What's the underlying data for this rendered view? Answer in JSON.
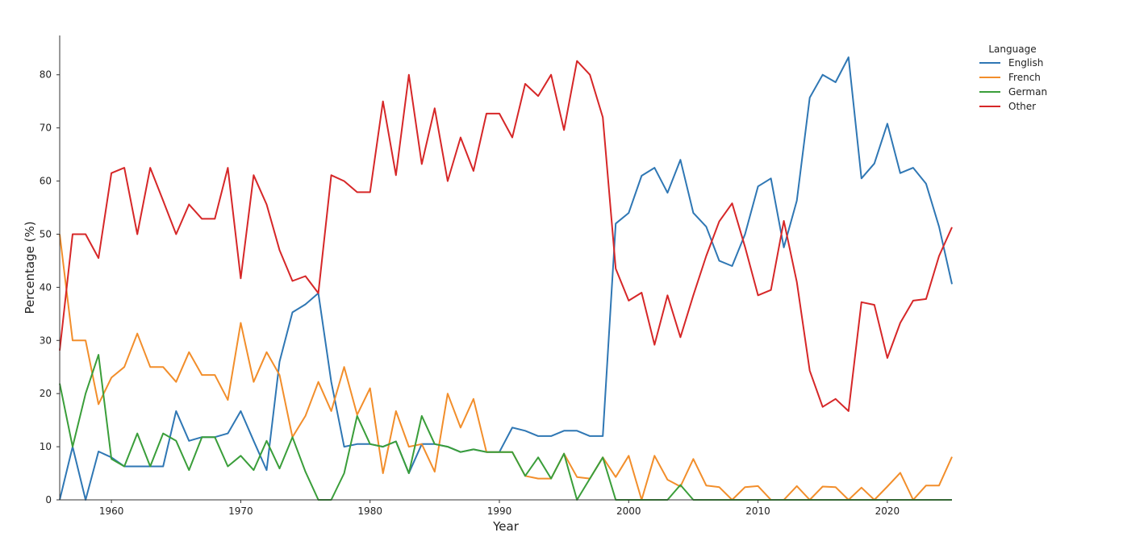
{
  "chart_data": {
    "type": "line",
    "title": "",
    "xlabel": "Year",
    "ylabel": "Percentage (%)",
    "xlim": [
      1956,
      2025
    ],
    "ylim": [
      0,
      85
    ],
    "xticks": [
      1960,
      1970,
      1980,
      1990,
      2000,
      2010,
      2020
    ],
    "yticks": [
      0,
      10,
      20,
      30,
      40,
      50,
      60,
      70,
      80
    ],
    "grid": false,
    "legend": {
      "title": "Language",
      "position": "top-right"
    },
    "x": [
      1956,
      1957,
      1958,
      1959,
      1960,
      1961,
      1962,
      1963,
      1964,
      1965,
      1966,
      1967,
      1968,
      1969,
      1970,
      1971,
      1972,
      1973,
      1974,
      1975,
      1976,
      1977,
      1978,
      1979,
      1980,
      1981,
      1982,
      1983,
      1984,
      1985,
      1986,
      1987,
      1988,
      1989,
      1990,
      1991,
      1992,
      1993,
      1994,
      1995,
      1996,
      1997,
      1998,
      1999,
      2000,
      2001,
      2002,
      2003,
      2004,
      2005,
      2006,
      2007,
      2008,
      2009,
      2010,
      2011,
      2012,
      2013,
      2014,
      2015,
      2016,
      2017,
      2018,
      2019,
      2020,
      2021,
      2022,
      2023,
      2024,
      2025
    ],
    "series": [
      {
        "name": "English",
        "color": "#2f77b4",
        "values": [
          0,
          10,
          0,
          9.1,
          8,
          6.3,
          6.3,
          6.3,
          6.3,
          16.7,
          11.1,
          11.8,
          11.8,
          12.5,
          16.7,
          11.1,
          5.6,
          26,
          35.3,
          36.8,
          38.9,
          22.2,
          10,
          10.5,
          10.5,
          10,
          11,
          5,
          10.5,
          10.5,
          10,
          9,
          9.5,
          9,
          9,
          13.6,
          13,
          12,
          12,
          13,
          13,
          12,
          12,
          52,
          54,
          61,
          62.5,
          57.8,
          64,
          54,
          51.4,
          45,
          44,
          50,
          59,
          60.5,
          47.5,
          56.3,
          75.7,
          80,
          78.6,
          83.3,
          60.5,
          63.3,
          70.8,
          61.5,
          62.5,
          59.5,
          51.4,
          40.6
        ]
      },
      {
        "name": "French",
        "color": "#f28e2b",
        "values": [
          50,
          30,
          30,
          18,
          23,
          25,
          31.3,
          25,
          25,
          22.2,
          27.8,
          23.5,
          23.5,
          18.8,
          33.3,
          22.2,
          27.8,
          23.5,
          11.8,
          15.8,
          22.2,
          16.7,
          25,
          16,
          21,
          5,
          16.7,
          10,
          10.5,
          5.3,
          20,
          13.6,
          19,
          9,
          9,
          9,
          4.5,
          4,
          4,
          8.7,
          4.3,
          4,
          8,
          4.3,
          8.3,
          0,
          8.3,
          3.8,
          2.5,
          7.7,
          2.7,
          2.4,
          0,
          2.4,
          2.6,
          0,
          0,
          2.6,
          0,
          2.5,
          2.4,
          0,
          2.3,
          0,
          2.5,
          5.1,
          0,
          2.7,
          2.7,
          8.1
        ]
      },
      {
        "name": "German",
        "color": "#3a9e3a",
        "values": [
          21.9,
          10,
          20,
          27.3,
          7.7,
          6.3,
          12.5,
          6.3,
          12.5,
          11.1,
          5.6,
          11.8,
          11.8,
          6.3,
          8.3,
          5.6,
          11.1,
          5.9,
          11.8,
          5.3,
          0,
          0,
          5,
          15.8,
          10.5,
          10,
          11,
          5,
          15.8,
          10.5,
          10,
          9,
          9.5,
          9,
          9,
          9,
          4.5,
          8,
          4,
          8.7,
          0,
          4,
          8,
          0,
          0,
          0,
          0,
          0,
          2.8,
          0,
          0,
          0,
          0,
          0,
          0,
          0,
          0,
          0,
          0,
          0,
          0,
          0,
          0,
          0,
          0,
          0,
          0,
          0,
          0,
          0
        ]
      },
      {
        "name": "Other",
        "color": "#d62728",
        "values": [
          28.1,
          50,
          50,
          45.5,
          61.5,
          62.5,
          50,
          62.5,
          56.3,
          50,
          55.6,
          52.9,
          52.9,
          62.5,
          41.7,
          61.1,
          55.6,
          47,
          41.2,
          42.1,
          38.9,
          61.1,
          60,
          57.9,
          57.9,
          75,
          61.1,
          80,
          63.2,
          73.7,
          60,
          68.2,
          61.9,
          72.7,
          72.7,
          68.2,
          78.3,
          76,
          80,
          69.6,
          82.6,
          80,
          72,
          43.5,
          37.5,
          39,
          29.2,
          38.5,
          30.6,
          38.5,
          45.9,
          52.4,
          55.8,
          47.6,
          38.5,
          39.5,
          52.5,
          41,
          24.3,
          17.5,
          19,
          16.7,
          37.2,
          36.7,
          26.7,
          33.3,
          37.5,
          37.8,
          45.9,
          51.3
        ]
      }
    ]
  }
}
